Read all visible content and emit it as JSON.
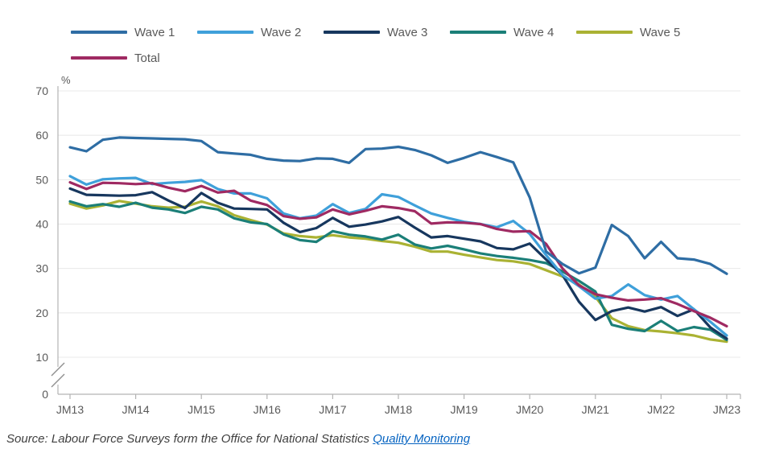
{
  "legend": {
    "rows": [
      [
        {
          "label": "Wave 1",
          "color": "#2e6da4"
        },
        {
          "label": "Wave 2",
          "color": "#3fa0da"
        },
        {
          "label": "Wave 3",
          "color": "#17375e"
        },
        {
          "label": "Wave 4",
          "color": "#1b7f78"
        },
        {
          "label": "Wave 5",
          "color": "#aab233"
        }
      ],
      [
        {
          "label": "Total",
          "color": "#9f2a62"
        }
      ]
    ]
  },
  "chart_data": {
    "type": "line",
    "title": "",
    "ylabel": "%",
    "unit_label": "%",
    "ylim": [
      0,
      70
    ],
    "y_ticks": [
      0,
      10,
      20,
      30,
      40,
      50,
      60,
      70
    ],
    "y_axis_break_between": [
      0,
      10
    ],
    "grid": "horizontal",
    "legend_position": "top-left",
    "x_tick_labels": [
      "JM13",
      "JM14",
      "JM15",
      "JM16",
      "JM17",
      "JM18",
      "JM19",
      "JM20",
      "JM21",
      "JM22",
      "JM23"
    ],
    "x": [
      "JM13",
      "AJ13",
      "JS13",
      "OD13",
      "JM14",
      "AJ14",
      "JS14",
      "OD14",
      "JM15",
      "AJ15",
      "JS15",
      "OD15",
      "JM16",
      "AJ16",
      "JS16",
      "OD16",
      "JM17",
      "AJ17",
      "JS17",
      "OD17",
      "JM18",
      "AJ18",
      "JS18",
      "OD18",
      "JM19",
      "AJ19",
      "JS19",
      "OD19",
      "JM20",
      "AJ20",
      "JS20",
      "OD20",
      "JM21",
      "AJ21",
      "JS21",
      "OD21",
      "JM22",
      "AJ22",
      "JS22",
      "OD22",
      "JM23"
    ],
    "series": [
      {
        "name": "Wave 5",
        "color": "#aab233",
        "values": [
          44.6,
          43.5,
          44.2,
          45.2,
          44.6,
          44.0,
          43.7,
          43.9,
          45.1,
          44.0,
          42.0,
          40.9,
          39.9,
          37.9,
          37.3,
          37.0,
          37.5,
          37.0,
          36.7,
          36.2,
          35.8,
          34.9,
          33.8,
          33.8,
          33.1,
          32.5,
          31.9,
          31.6,
          31.0,
          29.6,
          28.2,
          26.4,
          23.6,
          18.8,
          17.0,
          16.1,
          15.8,
          15.4,
          14.9,
          14.0,
          13.5
        ]
      },
      {
        "name": "Wave 4",
        "color": "#1b7f78",
        "values": [
          45.1,
          44.0,
          44.5,
          43.9,
          44.8,
          43.7,
          43.3,
          42.5,
          43.9,
          43.3,
          41.3,
          40.4,
          40.0,
          37.7,
          36.4,
          36.0,
          38.4,
          37.6,
          37.2,
          36.5,
          37.6,
          35.4,
          34.5,
          35.1,
          34.3,
          33.4,
          32.8,
          32.4,
          31.9,
          31.2,
          29.3,
          27.2,
          24.8,
          17.3,
          16.4,
          15.9,
          18.2,
          15.9,
          16.8,
          16.2,
          13.9
        ]
      },
      {
        "name": "Wave 3",
        "color": "#17375e",
        "values": [
          48.0,
          46.6,
          46.5,
          46.4,
          46.5,
          47.2,
          45.3,
          43.6,
          47.0,
          44.8,
          43.5,
          43.4,
          43.3,
          40.3,
          38.2,
          39.1,
          41.4,
          39.4,
          39.9,
          40.6,
          41.6,
          39.2,
          37.0,
          37.3,
          36.7,
          36.1,
          34.6,
          34.3,
          35.6,
          32.0,
          28.5,
          22.5,
          18.4,
          20.4,
          21.2,
          20.3,
          21.3,
          19.3,
          20.8,
          16.7,
          14.2
        ]
      },
      {
        "name": "Wave 2",
        "color": "#3fa0da",
        "values": [
          50.8,
          48.9,
          50.1,
          50.3,
          50.4,
          49.0,
          49.3,
          49.5,
          49.9,
          47.9,
          46.9,
          46.9,
          45.8,
          42.4,
          41.3,
          41.9,
          44.5,
          42.5,
          43.4,
          46.7,
          46.1,
          44.2,
          42.4,
          41.4,
          40.5,
          40.0,
          39.3,
          40.7,
          37.8,
          33.0,
          28.5,
          26.0,
          23.2,
          23.8,
          26.4,
          24.0,
          23.0,
          23.8,
          20.8,
          18.0,
          14.9
        ]
      },
      {
        "name": "Total",
        "color": "#9f2a62",
        "values": [
          49.4,
          47.9,
          49.3,
          49.2,
          49.0,
          49.2,
          48.2,
          47.4,
          48.6,
          47.1,
          47.5,
          45.3,
          44.3,
          41.8,
          41.2,
          41.5,
          43.3,
          42.2,
          43.0,
          44.0,
          43.6,
          42.9,
          40.1,
          40.4,
          40.3,
          40.0,
          38.9,
          38.3,
          38.4,
          35.5,
          30.0,
          26.2,
          24.2,
          23.4,
          22.8,
          23.0,
          23.3,
          22.0,
          20.4,
          18.9,
          17.0
        ]
      },
      {
        "name": "Wave 1",
        "color": "#2e6da4",
        "values": [
          57.3,
          56.4,
          59.0,
          59.5,
          59.4,
          59.3,
          59.2,
          59.1,
          58.7,
          56.2,
          55.9,
          55.6,
          54.7,
          54.3,
          54.2,
          54.8,
          54.7,
          53.8,
          56.9,
          57.0,
          57.4,
          56.7,
          55.5,
          53.8,
          54.9,
          56.2,
          55.1,
          53.9,
          46.0,
          33.8,
          31.0,
          28.9,
          30.2,
          39.8,
          37.3,
          32.3,
          36.0,
          32.3,
          32.0,
          31.0,
          28.8
        ]
      }
    ],
    "colors": {
      "gridline": "#e8e8e8",
      "axis": "#b3b3b3",
      "axis_break": "#8f8f8f",
      "tick_text": "#595959"
    }
  },
  "source": {
    "prefix": "Source: Labour Force Surveys form the Office for National Statistics ",
    "link_text": "Quality Monitoring"
  }
}
